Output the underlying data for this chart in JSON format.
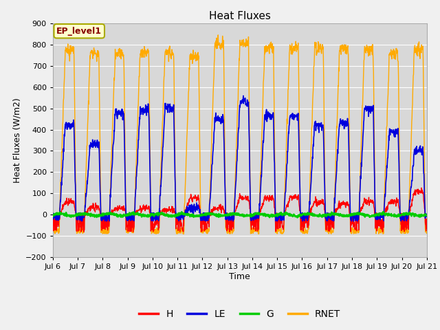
{
  "title": "Heat Fluxes",
  "ylabel": "Heat Fluxes (W/m2)",
  "xlabel": "Time",
  "ylim": [
    -200,
    900
  ],
  "yticks": [
    -200,
    -100,
    0,
    100,
    200,
    300,
    400,
    500,
    600,
    700,
    800,
    900
  ],
  "colors": {
    "H": "#ff0000",
    "LE": "#0000dd",
    "G": "#00cc00",
    "RNET": "#ffaa00"
  },
  "bg_color": "#d8d8d8",
  "annotation_text": "EP_level1",
  "start_day": 6,
  "end_day": 21,
  "n_days": 15,
  "pts_per_day": 96
}
